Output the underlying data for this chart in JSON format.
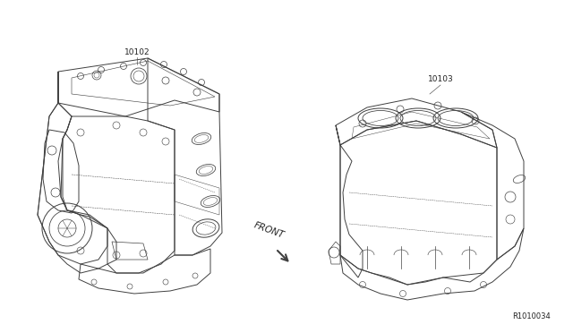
{
  "bg_color": "#ffffff",
  "label_10102": "10102",
  "label_10103": "10103",
  "label_front": "FRONT",
  "ref_code": "R1010034",
  "engine_color": "#404040",
  "text_color": "#222222",
  "font_size_label": 6.5,
  "font_size_ref": 6.0,
  "font_size_front": 7.5,
  "lw": 0.7
}
